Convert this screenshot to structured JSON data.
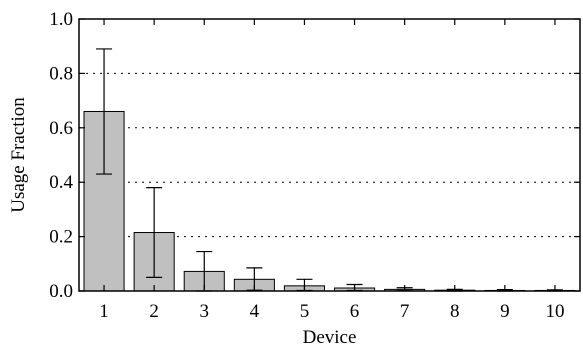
{
  "chart_data": {
    "type": "bar",
    "title": "",
    "xlabel": "Device",
    "ylabel": "Usage Fraction",
    "categories": [
      "1",
      "2",
      "3",
      "4",
      "5",
      "6",
      "7",
      "8",
      "9",
      "10"
    ],
    "values": [
      0.66,
      0.215,
      0.072,
      0.043,
      0.019,
      0.011,
      0.006,
      0.003,
      0.002,
      0.002
    ],
    "error_low": [
      0.43,
      0.05,
      0.0,
      0.003,
      0.002,
      0.002,
      0.001,
      0.0,
      0.0,
      0.0
    ],
    "error_high": [
      0.89,
      0.38,
      0.145,
      0.085,
      0.043,
      0.024,
      0.012,
      0.006,
      0.005,
      0.004
    ],
    "ylim": [
      0,
      1.0
    ],
    "yticks": [
      "0.0",
      "0.2",
      "0.4",
      "0.6",
      "0.8",
      "1.0"
    ],
    "grid": "horizontal dotted",
    "colors": {
      "bar_fill": "#c0c0c0",
      "bar_stroke": "#000000"
    }
  }
}
